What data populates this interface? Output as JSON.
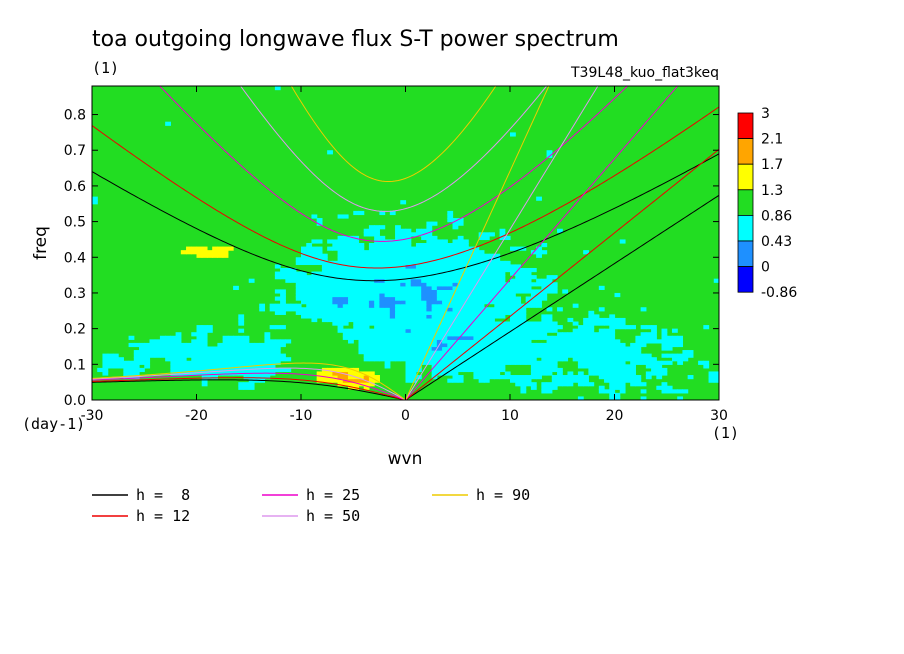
{
  "chart_data": {
    "type": "heatmap",
    "title": "toa outgoing longwave flux S-T power spectrum",
    "title_unit": "(1)",
    "run_label": "T39L48_kuo_flat3keq",
    "xlabel": "wvn",
    "ylabel": "freq",
    "x_unit": "(1)",
    "y_unit": "(day-1)",
    "xlim": [
      -30,
      30
    ],
    "ylim": [
      0,
      0.88
    ],
    "x_ticks": [
      "-30",
      "-20",
      "-10",
      "0",
      "10",
      "20",
      "30"
    ],
    "y_ticks": [
      "0.0",
      "0.1",
      "0.2",
      "0.3",
      "0.4",
      "0.5",
      "0.6",
      "0.7",
      "0.8"
    ],
    "colorbar": {
      "labels": [
        "3",
        "2.1",
        "1.7",
        "1.3",
        "0.86",
        "0.43",
        "0",
        "-0.86"
      ],
      "colors": [
        "#ff0000",
        "#ffa500",
        "#ffff00",
        "#22dd22",
        "#00ffff",
        "#1e90ff",
        "#0000ff"
      ]
    },
    "background_level_colors": {
      "low": "#00ffff",
      "mid": "#22dd22",
      "high": "#ffff00",
      "peak": "#ff0000",
      "orange": "#ffa500",
      "deep": "#1e90ff"
    },
    "dispersion_curves": [
      {
        "label": "h =  8",
        "h": 8,
        "color": "#000000"
      },
      {
        "label": "h = 12",
        "h": 12,
        "color": "#ee0000"
      },
      {
        "label": "h = 25",
        "h": 25,
        "color": "#ee00cc"
      },
      {
        "label": "h = 50",
        "h": 50,
        "color": "#dd99ee"
      },
      {
        "label": "h = 90",
        "h": 90,
        "color": "#eecc00"
      }
    ]
  }
}
